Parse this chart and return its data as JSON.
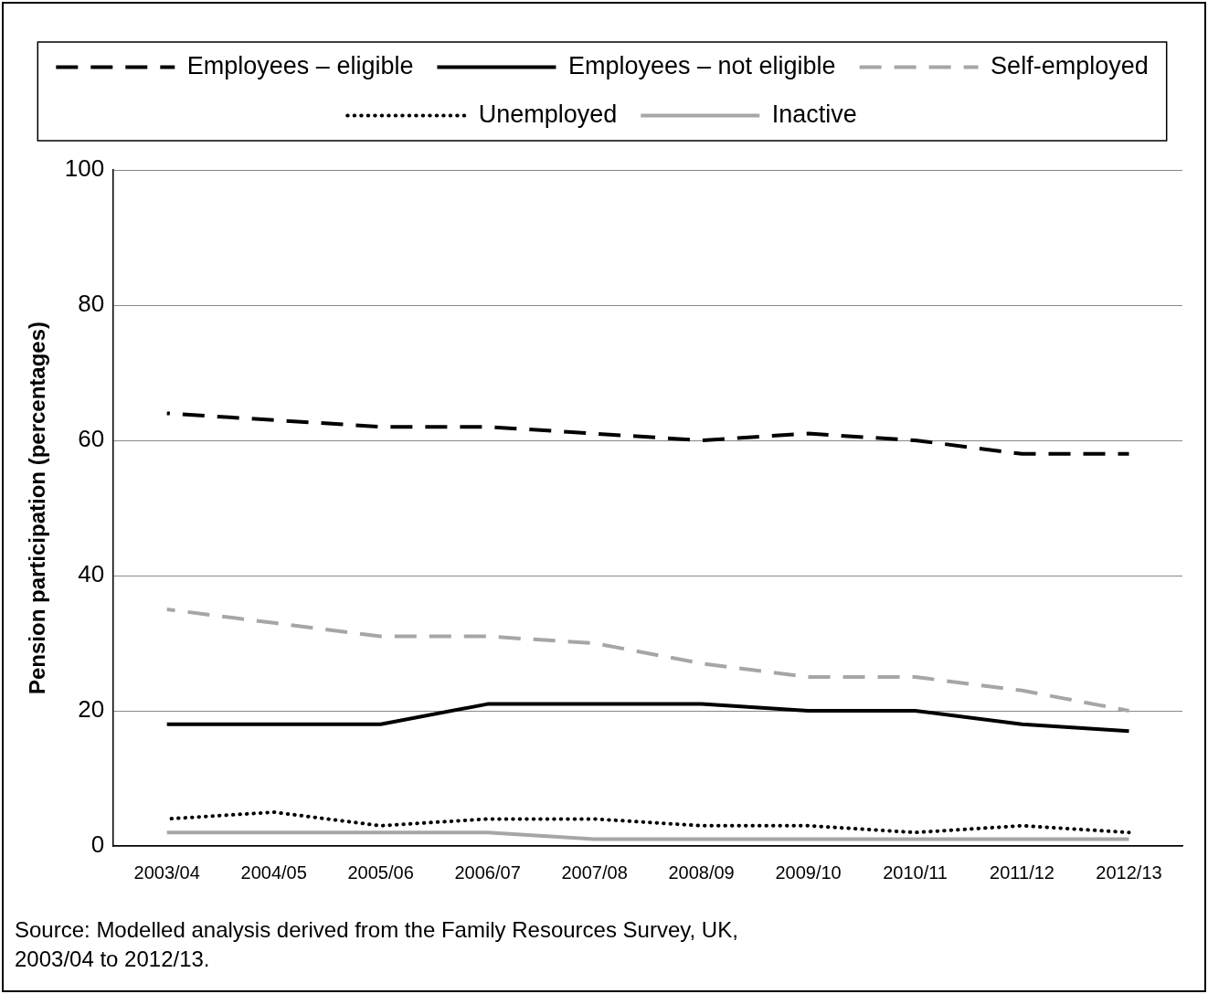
{
  "chart_data": {
    "type": "line",
    "ylabel": "Pension participation (percentages)",
    "categories": [
      "2003/04",
      "2004/05",
      "2005/06",
      "2006/07",
      "2007/08",
      "2008/09",
      "2009/10",
      "2010/11",
      "2011/12",
      "2012/13"
    ],
    "series": [
      {
        "name": "Employees – eligible",
        "color": "#000000",
        "line_style": "dashed",
        "values": [
          64,
          63,
          62,
          62,
          61,
          60,
          61,
          60,
          58,
          58
        ]
      },
      {
        "name": "Employees – not eligible",
        "color": "#000000",
        "line_style": "solid",
        "values": [
          18,
          18,
          18,
          21,
          21,
          21,
          20,
          20,
          18,
          17
        ]
      },
      {
        "name": "Self-employed",
        "color": "#a6a6a6",
        "line_style": "dashed",
        "values": [
          35,
          33,
          31,
          31,
          30,
          27,
          25,
          25,
          23,
          20
        ]
      },
      {
        "name": "Unemployed",
        "color": "#000000",
        "line_style": "dotted",
        "values": [
          4,
          5,
          3,
          4,
          4,
          3,
          3,
          2,
          3,
          2
        ]
      },
      {
        "name": "Inactive",
        "color": "#a6a6a6",
        "line_style": "solid",
        "values": [
          2,
          2,
          2,
          2,
          1,
          1,
          1,
          1,
          1,
          1
        ]
      }
    ],
    "ylim": [
      0,
      100
    ],
    "yticks": [
      0,
      20,
      40,
      60,
      80,
      100
    ],
    "grid": "y",
    "legend": "top",
    "marker": "none",
    "annotations": [
      "Source: Modelled analysis derived from the Family Resources Survey, UK, 2003/04 to 2012/13."
    ]
  }
}
